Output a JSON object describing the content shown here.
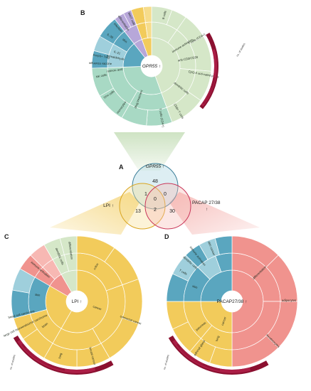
{
  "panels": {
    "A": "A",
    "B": "B",
    "C": "C",
    "D": "D"
  },
  "venn": {
    "sets": [
      {
        "key": "gpr55",
        "title": "GPR55",
        "arrow": "↑",
        "color": "#4a9bb5"
      },
      {
        "key": "lpi",
        "title": "LPI",
        "arrow": "↑",
        "color": "#e8b84a"
      },
      {
        "key": "pacap",
        "title": "PACAP 27/38",
        "arrow": "↑",
        "color": "#e06a6a"
      }
    ],
    "counts": {
      "gpr55_only": "48",
      "lpi_only": "13",
      "pacap_only": "30",
      "gpr55_lpi": "1",
      "gpr55_pacap": "0",
      "lpi_pacap": "2",
      "all_three": "0"
    }
  },
  "sunbursts": {
    "B": {
      "center_gene": "GPR55",
      "center_arrow": "↑",
      "labels": [
        "B cells",
        "T cells (CD4+)",
        "anti-CD3/CD28",
        "CpG-A acti-vated pDCs",
        "immune activation",
        "dendritic cells",
        "CD8+ T cells",
        "T cells (CD4+)",
        "drug treatment",
        "monocytes",
        "TFH cells",
        "NK cells",
        "Foxp3+ Treg",
        "IL-21",
        "IL-33",
        "skin",
        "infection",
        "influenza vaccine",
        "formaldehyde",
        "retinoic acid",
        "differentiation",
        "MAIT cells"
      ]
    },
    "C": {
      "center_gene": "LPI",
      "center_arrow": "↑",
      "labels": [
        "colon",
        "cancer",
        "colorectal cancer",
        "brain",
        "lung",
        "skin",
        "breast cancer",
        "immune activation",
        "dendritic cells",
        "differentiation",
        "basal cell carcinoma",
        "large cell neuroendocrine carcinoma"
      ]
    },
    "D": {
      "center_gene": "PACAP27/38",
      "center_arrow": "↑",
      "labels": [
        "differentiation",
        "skin",
        "cancer",
        "pancreas",
        "adrenal gland",
        "lung",
        "immune activation",
        "dendritic cells",
        "T cells",
        "skin cancer",
        "adipocytes",
        "keratinocytes"
      ]
    },
    "axis_title": "no. of studies"
  },
  "colors": {
    "green": "#d5e7c8",
    "green_dark": "#bcd6a9",
    "teal": "#5aa6bf",
    "teal_light": "#9fcfdc",
    "lavender": "#b7a7d9",
    "yellow": "#f2cb5b",
    "yellow_light": "#f6dc8b",
    "salmon": "#f0938e",
    "salmon_light": "#f7b8b3",
    "red_bar": "#8b1030",
    "mint": "#a8d9c4"
  }
}
